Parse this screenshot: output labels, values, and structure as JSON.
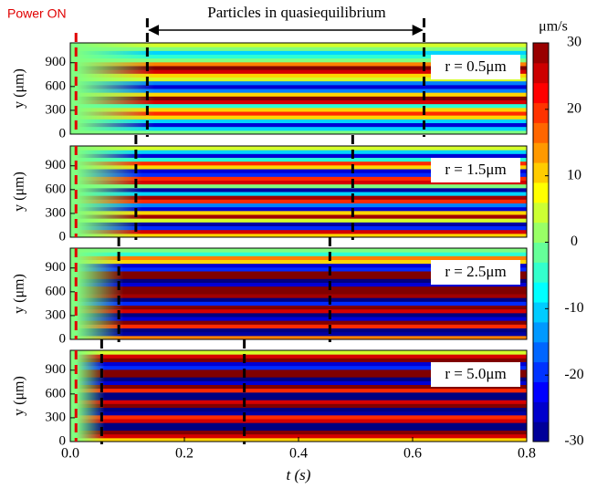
{
  "chart_data": {
    "type": "heatmap",
    "annotation": "Particles in quasiequilibrium",
    "power_label": "Power ON",
    "power_t": 0.01,
    "xlabel": "t (s)",
    "xlim": [
      0,
      0.8
    ],
    "xticks": [
      {
        "value": 0,
        "label": "0.0"
      },
      0.2,
      0.4,
      0.6,
      0.8
    ],
    "ylim": [
      0,
      1150
    ],
    "yticks": [
      0,
      300,
      600,
      900
    ],
    "colorbar_label": "μm/s",
    "clim": [
      -30,
      30
    ],
    "cticks": [
      30,
      20,
      10,
      0,
      -10,
      -20,
      -30
    ],
    "panels": [
      {
        "label": "r = 0.5μm",
        "ylabel": "y (μm)",
        "quasi": [
          0.135,
          0.62
        ],
        "profile": [
          0,
          -10,
          -25,
          -10,
          10,
          20,
          10,
          -5,
          25,
          30,
          10,
          -15,
          -25,
          -15,
          5,
          10,
          25,
          30,
          15,
          0,
          -5,
          -10,
          0,
          5
        ]
      },
      {
        "label": "r = 1.5μm",
        "ylabel": "y (μm)",
        "quasi": [
          0.115,
          0.495
        ],
        "profile": [
          10,
          25,
          -20,
          -28,
          5,
          28,
          10,
          -25,
          -15,
          20,
          28,
          -10,
          -28,
          0,
          25,
          20,
          -20,
          -25,
          10,
          20,
          -5,
          -25,
          -10,
          5
        ]
      },
      {
        "label": "r = 2.5μm",
        "ylabel": "y (μm)",
        "quasi": [
          0.085,
          0.455
        ],
        "profile": [
          15,
          -28,
          -30,
          20,
          30,
          -25,
          -30,
          25,
          30,
          -20,
          -30,
          28,
          30,
          30,
          -25,
          -30,
          30,
          30,
          -20,
          -25,
          10,
          15,
          -5,
          0
        ]
      },
      {
        "label": "r = 5.0μm",
        "ylabel": "y (μm)",
        "quasi": [
          0.055,
          0.305
        ],
        "profile": [
          10,
          25,
          30,
          -30,
          -30,
          25,
          20,
          -28,
          -30,
          30,
          25,
          -30,
          -30,
          20,
          30,
          -25,
          -30,
          30,
          30,
          -20,
          -25,
          30,
          25,
          5
        ]
      }
    ]
  }
}
